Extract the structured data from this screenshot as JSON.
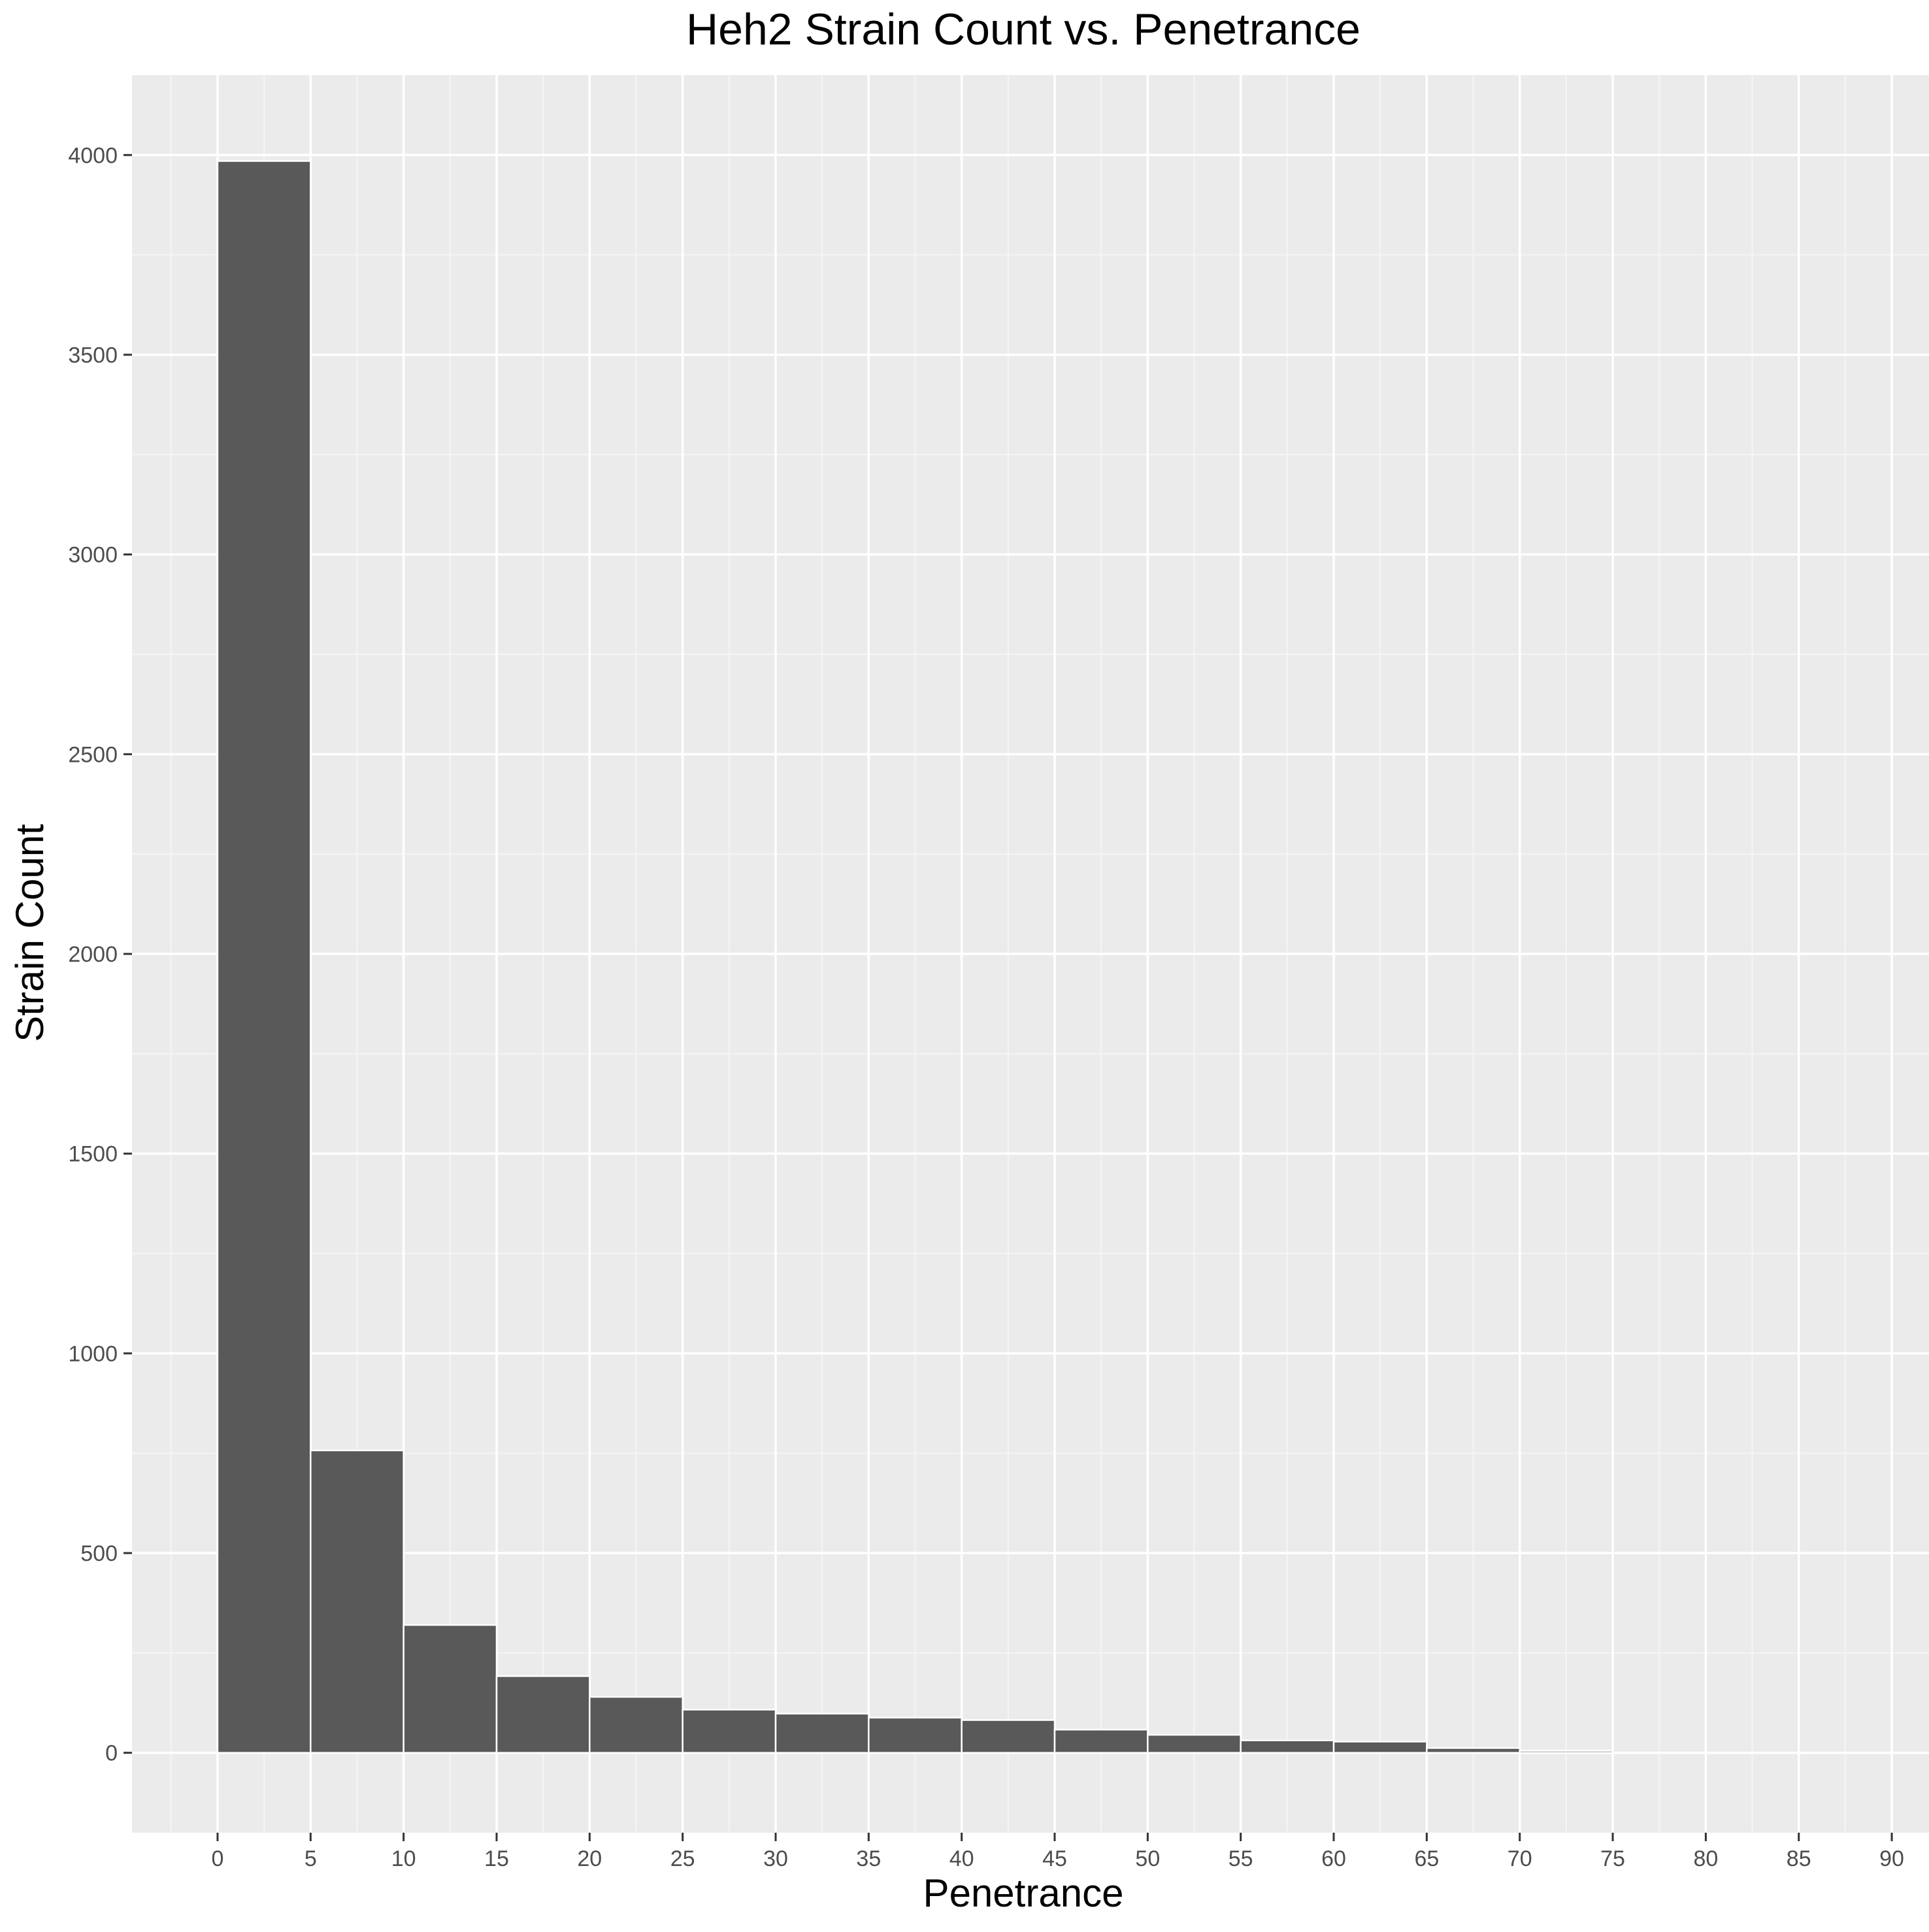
{
  "chart_data": {
    "type": "bar",
    "title": "Heh2 Strain Count vs. Penetrance",
    "xlabel": "Penetrance",
    "ylabel": "Strain Count",
    "bin_width": 5,
    "bins": [
      {
        "x0": 0,
        "x1": 5,
        "count": 3985
      },
      {
        "x0": 5,
        "x1": 10,
        "count": 757
      },
      {
        "x0": 10,
        "x1": 15,
        "count": 320
      },
      {
        "x0": 15,
        "x1": 20,
        "count": 192
      },
      {
        "x0": 20,
        "x1": 25,
        "count": 140
      },
      {
        "x0": 25,
        "x1": 30,
        "count": 108
      },
      {
        "x0": 30,
        "x1": 35,
        "count": 98
      },
      {
        "x0": 35,
        "x1": 40,
        "count": 88
      },
      {
        "x0": 40,
        "x1": 45,
        "count": 82
      },
      {
        "x0": 45,
        "x1": 50,
        "count": 58
      },
      {
        "x0": 50,
        "x1": 55,
        "count": 45
      },
      {
        "x0": 55,
        "x1": 60,
        "count": 31
      },
      {
        "x0": 60,
        "x1": 65,
        "count": 28
      },
      {
        "x0": 65,
        "x1": 70,
        "count": 12
      },
      {
        "x0": 70,
        "x1": 75,
        "count": 5
      },
      {
        "x0": 75,
        "x1": 80,
        "count": 1
      },
      {
        "x0": 80,
        "x1": 85,
        "count": 0
      },
      {
        "x0": 85,
        "x1": 90,
        "count": 0
      }
    ],
    "xlim": [
      -4.6,
      92.0
    ],
    "ylim": [
      -200,
      4200
    ],
    "xticks": [
      0,
      5,
      10,
      15,
      20,
      25,
      30,
      35,
      40,
      45,
      50,
      55,
      60,
      65,
      70,
      75,
      80,
      85,
      90
    ],
    "yticks": [
      0,
      500,
      1000,
      1500,
      2000,
      2500,
      3000,
      3500,
      4000
    ],
    "grid": true,
    "legend": "none",
    "colors": {
      "bar_fill": "#595959",
      "bar_outline": "#ffffff",
      "panel_background": "#ebebeb",
      "grid_major": "#ffffff",
      "grid_minor": "#f5f5f5",
      "tick_text": "#4d4d4d",
      "tick_mark": "#333333",
      "title_text": "#000000"
    }
  }
}
